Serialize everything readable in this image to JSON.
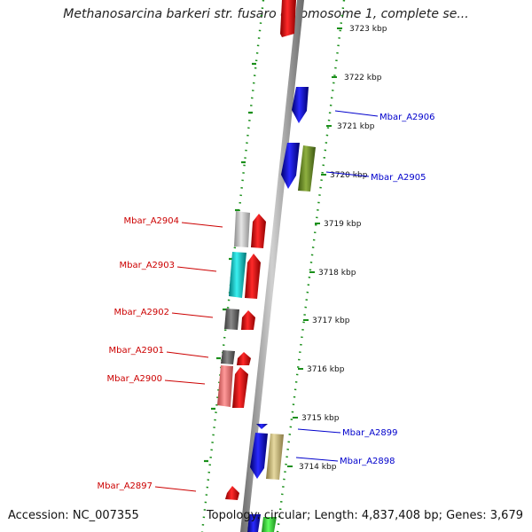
{
  "title": "Methanosarcina barkeri str. fusaro chromosome 1, complete se...",
  "accession": "Accession: NC_007355",
  "topology": "Topology: circular; Length: 4,837,408 bp; Genes: 3,679",
  "colors": {
    "forward_label": "#0000cc",
    "reverse_label": "#cc0000",
    "tick": "#1a8f1a",
    "backbone": "#999999"
  },
  "ticks": [
    {
      "label": "3723 kbp"
    },
    {
      "label": "3722 kbp"
    },
    {
      "label": "3721 kbp"
    },
    {
      "label": "3720 kbp"
    },
    {
      "label": "3719 kbp"
    },
    {
      "label": "3718 kbp"
    },
    {
      "label": "3717 kbp"
    },
    {
      "label": "3716 kbp"
    },
    {
      "label": "3715 kbp"
    },
    {
      "label": "3714 kbp"
    }
  ],
  "gene_labels": [
    {
      "name": "Mbar_A2906",
      "strand": "forward"
    },
    {
      "name": "Mbar_A2905",
      "strand": "forward"
    },
    {
      "name": "Mbar_A2904",
      "strand": "reverse"
    },
    {
      "name": "Mbar_A2903",
      "strand": "reverse"
    },
    {
      "name": "Mbar_A2902",
      "strand": "reverse"
    },
    {
      "name": "Mbar_A2901",
      "strand": "reverse"
    },
    {
      "name": "Mbar_A2900",
      "strand": "reverse"
    },
    {
      "name": "Mbar_A2899",
      "strand": "forward"
    },
    {
      "name": "Mbar_A2898",
      "strand": "forward"
    },
    {
      "name": "Mbar_A2897",
      "strand": "reverse"
    }
  ]
}
